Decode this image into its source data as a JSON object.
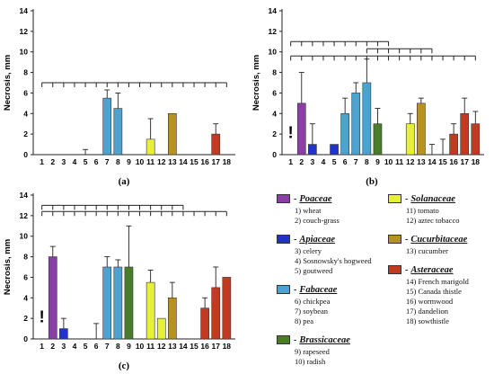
{
  "chart_data": [
    {
      "type": "bar",
      "panel_label": "(a)",
      "ylabel": "Necrosis, mm",
      "ylim": [
        0,
        14
      ],
      "yticks": [
        0,
        2,
        4,
        6,
        8,
        10,
        12,
        14
      ],
      "categories": [
        "1",
        "2",
        "3",
        "4",
        "5",
        "6",
        "7",
        "8",
        "9",
        "10",
        "11",
        "12",
        "13",
        "14",
        "15",
        "16",
        "17",
        "18"
      ],
      "values": [
        0,
        0,
        0,
        0,
        0,
        0,
        5.5,
        4.5,
        0,
        0,
        1.5,
        0,
        4,
        0,
        0,
        0,
        2,
        0
      ],
      "errors": [
        0,
        0,
        0,
        0,
        0.5,
        0,
        0.8,
        1.5,
        0,
        0,
        2,
        0,
        0,
        0,
        0,
        0,
        1,
        0
      ],
      "bracket_rows": [
        {
          "y": 7,
          "ticks": [
            1,
            2,
            3,
            4,
            5,
            6,
            7,
            8,
            9,
            10,
            11,
            12,
            13,
            14,
            15,
            16,
            17,
            18
          ]
        }
      ]
    },
    {
      "type": "bar",
      "panel_label": "(b)",
      "ylabel": "Necrosis, mm",
      "ylim": [
        0,
        14
      ],
      "yticks": [
        0,
        2,
        4,
        6,
        8,
        10,
        12,
        14
      ],
      "categories": [
        "1",
        "2",
        "3",
        "4",
        "5",
        "6",
        "7",
        "8",
        "9",
        "10",
        "11",
        "12",
        "13",
        "14",
        "15",
        "16",
        "17",
        "18"
      ],
      "values": [
        0,
        5,
        1,
        0,
        1,
        4,
        6,
        7,
        3,
        0,
        0,
        3,
        5,
        0,
        0,
        2,
        4,
        3
      ],
      "errors": [
        0,
        3,
        2,
        0,
        0,
        1.5,
        1,
        2.3,
        1.5,
        0,
        0,
        1,
        0.5,
        1,
        1.5,
        1,
        1.5,
        1.2
      ],
      "bracket_rows": [
        {
          "y": 11,
          "ticks": [
            1,
            2,
            3,
            4,
            5,
            6,
            7,
            8,
            9,
            10
          ]
        },
        {
          "y": 10.3,
          "ticks": [
            8,
            9,
            10,
            11,
            12,
            13,
            14
          ]
        },
        {
          "y": 9.6,
          "ticks": [
            1,
            2,
            3,
            4,
            5,
            6,
            7,
            8,
            9,
            10,
            11,
            12,
            13,
            14,
            15,
            16,
            17,
            18
          ]
        }
      ],
      "annotation": "!"
    },
    {
      "type": "bar",
      "panel_label": "(c)",
      "ylabel": "Necrosis, mm",
      "ylim": [
        0,
        14
      ],
      "yticks": [
        0,
        2,
        4,
        6,
        8,
        10,
        12,
        14
      ],
      "categories": [
        "1",
        "2",
        "3",
        "4",
        "5",
        "6",
        "7",
        "8",
        "9",
        "10",
        "11",
        "12",
        "13",
        "14",
        "15",
        "16",
        "17",
        "18"
      ],
      "values": [
        0,
        8,
        1,
        0,
        0,
        0,
        7,
        7,
        7,
        0,
        5.5,
        2,
        4,
        0,
        0,
        3,
        5,
        6
      ],
      "errors": [
        0,
        1,
        1,
        0,
        0,
        1.5,
        1,
        0.7,
        4,
        0,
        1.2,
        0,
        1.5,
        0,
        0,
        1,
        2,
        0
      ],
      "bracket_rows": [
        {
          "y": 13,
          "ticks": [
            1,
            2,
            3,
            4,
            5,
            6,
            7,
            8,
            9,
            10,
            11,
            12,
            13,
            14
          ]
        },
        {
          "y": 12.4,
          "ticks": [
            1,
            2,
            3,
            4,
            5,
            6,
            7,
            8,
            9,
            10,
            11,
            12,
            13,
            14,
            15,
            16,
            17,
            18
          ]
        }
      ],
      "annotation": "!"
    }
  ],
  "bar_colors": [
    "#8a3fa6",
    "#8a3fa6",
    "#2233cc",
    "#2233cc",
    "#2233cc",
    "#4da3cf",
    "#4da3cf",
    "#4da3cf",
    "#4a7d2a",
    "#4a7d2a",
    "#e6f03a",
    "#e6f03a",
    "#b8921f",
    "#c23a22",
    "#c23a22",
    "#c23a22",
    "#c23a22",
    "#c23a22"
  ],
  "legend": {
    "left": [
      {
        "family": "Poaceae",
        "color": "#8a3fa6",
        "items": [
          "1) wheat",
          "2) couch-grass"
        ]
      },
      {
        "family": "Apiaceae",
        "color": "#2233cc",
        "items": [
          "3) celery",
          "4) Sosnowsky's hogweed",
          "5) goutweed"
        ]
      },
      {
        "family": "Fabaceae",
        "color": "#4da3cf",
        "items": [
          "6) chickpea",
          "7) soybean",
          "8) pea"
        ]
      },
      {
        "family": "Brassicaceae",
        "color": "#4a7d2a",
        "items": [
          "9) rapeseed",
          "10) radish"
        ]
      }
    ],
    "right": [
      {
        "family": "Solanaceae",
        "color": "#e6f03a",
        "items": [
          "11) tomato",
          "12) aztec tobacco"
        ]
      },
      {
        "family": "Cucurbitaceae",
        "color": "#b8921f",
        "items": [
          "13) cucumber"
        ]
      },
      {
        "family": "Asteraceae",
        "color": "#c23a22",
        "items": [
          "14) French marigold",
          "15) Canada thistle",
          "16) wormwood",
          "17) dandelion",
          "18) sowthistle"
        ]
      }
    ]
  }
}
